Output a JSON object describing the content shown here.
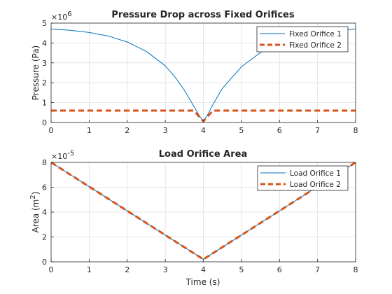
{
  "chart_data": [
    {
      "type": "line",
      "title": "Pressure Drop across Fixed Orifices",
      "xlabel": "",
      "ylabel": "Pressure (Pa)",
      "y_exponent_base": "×10",
      "y_exponent_power": "6",
      "xlim": [
        0,
        8
      ],
      "ylim": [
        0,
        5
      ],
      "xticks": [
        "0",
        "1",
        "2",
        "3",
        "4",
        "5",
        "6",
        "7",
        "8"
      ],
      "yticks": [
        "0",
        "1",
        "2",
        "3",
        "4",
        "5"
      ],
      "grid": true,
      "legend_position": "top-right",
      "series": [
        {
          "name": "Fixed Orifice 1",
          "color": "#0072BD",
          "style": "solid",
          "x": [
            0,
            0.5,
            1,
            1.5,
            2,
            2.5,
            3,
            3.25,
            3.5,
            3.75,
            3.9,
            4,
            4.1,
            4.25,
            4.5,
            5,
            5.5,
            6,
            6.5,
            7,
            7.5,
            8
          ],
          "values": [
            4.7,
            4.64,
            4.53,
            4.35,
            4.05,
            3.58,
            2.85,
            2.3,
            1.63,
            0.82,
            0.32,
            0.06,
            0.35,
            0.9,
            1.72,
            2.8,
            3.52,
            3.98,
            4.3,
            4.5,
            4.62,
            4.7
          ]
        },
        {
          "name": "Fixed Orifice 2",
          "color": "#D95319",
          "style": "dashed",
          "x": [
            0,
            3.75,
            4,
            4.25,
            8
          ],
          "values": [
            0.6,
            0.6,
            0.06,
            0.6,
            0.6
          ]
        }
      ]
    },
    {
      "type": "line",
      "title": "Load Orifice Area",
      "xlabel": "Time (s)",
      "ylabel_main": "Area (m",
      "ylabel_sup": "2",
      "ylabel_end": ")",
      "y_exponent_base": "×10",
      "y_exponent_power": "-5",
      "xlim": [
        0,
        8
      ],
      "ylim": [
        0,
        8
      ],
      "xticks": [
        "0",
        "1",
        "2",
        "3",
        "4",
        "5",
        "6",
        "7",
        "8"
      ],
      "yticks": [
        "0",
        "2",
        "4",
        "6",
        "8"
      ],
      "grid": true,
      "legend_position": "top-right",
      "series": [
        {
          "name": "Load Orifice 1",
          "color": "#0072BD",
          "style": "solid",
          "x": [
            0,
            4,
            8
          ],
          "values": [
            8,
            0.2,
            8
          ]
        },
        {
          "name": "Load Orifice 2",
          "color": "#D95319",
          "style": "dashed",
          "x": [
            0,
            4,
            8
          ],
          "values": [
            8,
            0.2,
            8
          ]
        }
      ]
    }
  ]
}
